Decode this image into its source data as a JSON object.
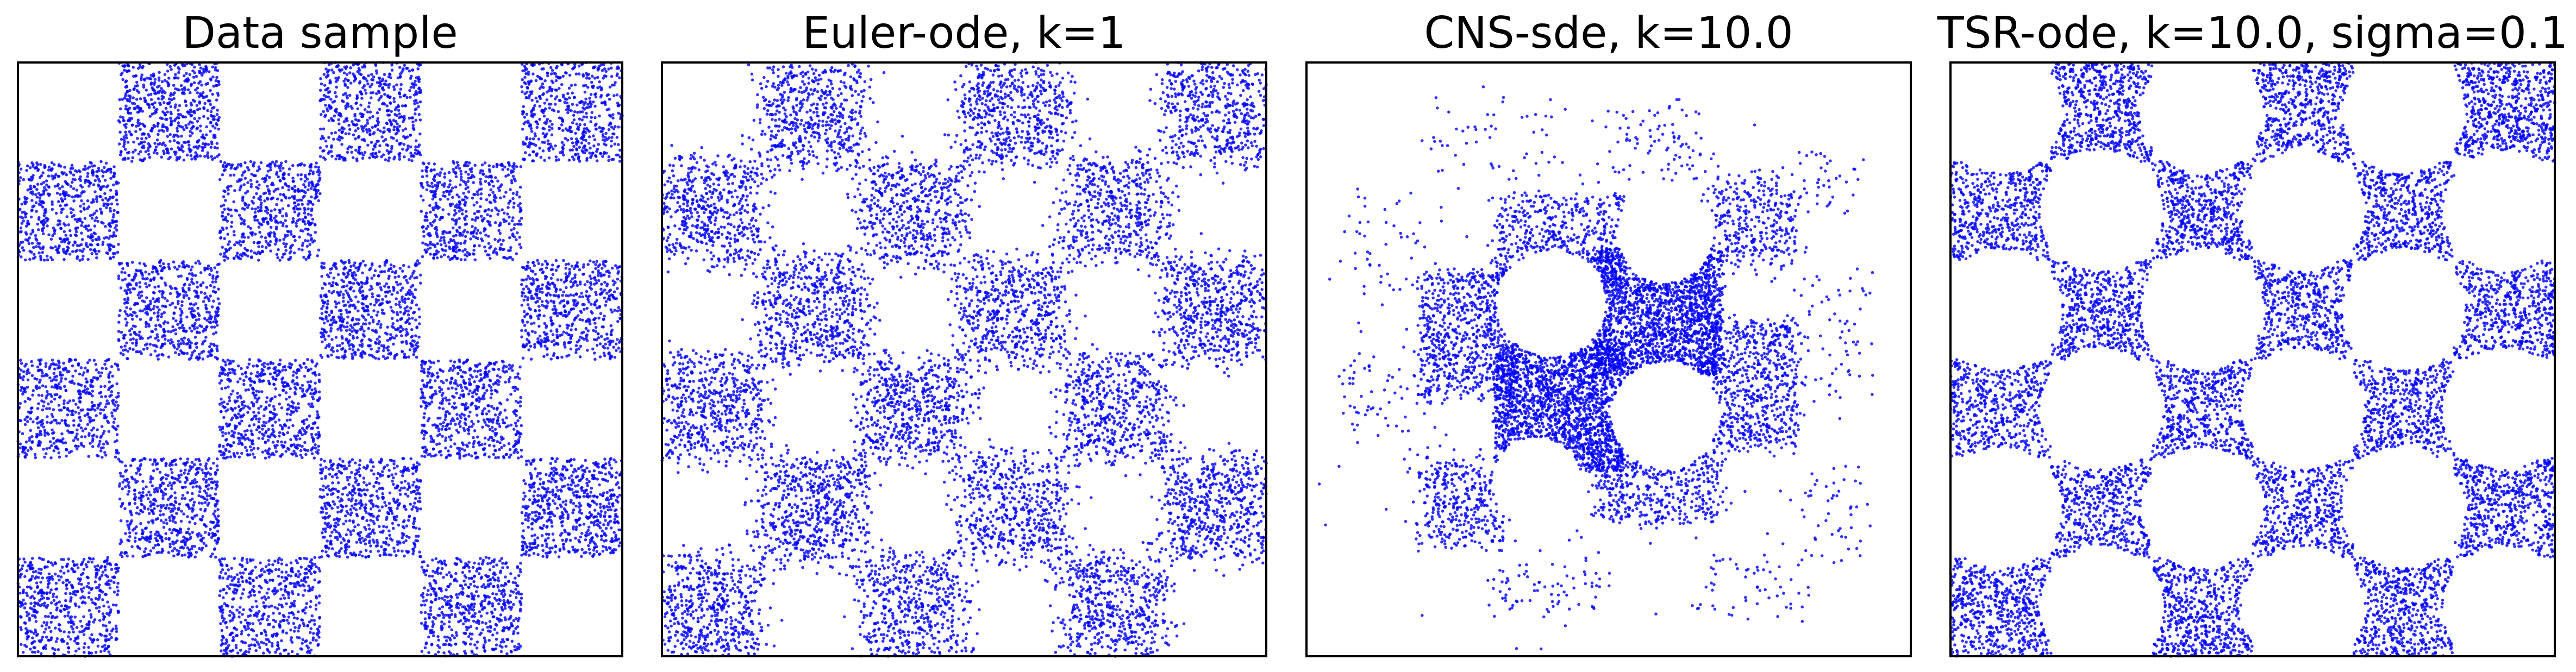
{
  "chart_data": [
    {
      "type": "scatter",
      "title": "Data sample",
      "xlim": [
        -4,
        4
      ],
      "ylim": [
        -4,
        4
      ],
      "grid": false,
      "marker_color": "#0000ff",
      "pattern": "checkerboard 6x6, uniform fill",
      "approx_point_count": 10000
    },
    {
      "type": "scatter",
      "title": "Euler-ode, k=1",
      "xlim": [
        -4,
        4
      ],
      "ylim": [
        -4,
        4
      ],
      "grid": false,
      "marker_color": "#0000ff",
      "pattern": "checkerboard 6x6, diffuse",
      "approx_point_count": 10000
    },
    {
      "type": "scatter",
      "title": "CNS-sde, k=10.0",
      "xlim": [
        -4,
        4
      ],
      "ylim": [
        -4,
        4
      ],
      "grid": false,
      "marker_color": "#0000ff",
      "pattern": "concentrated center squares with circular voids",
      "approx_point_count": 10000
    },
    {
      "type": "scatter",
      "title": "TSR-ode, k=10.0, sigma=0.1",
      "xlim": [
        -4,
        4
      ],
      "ylim": [
        -4,
        4
      ],
      "grid": false,
      "marker_color": "#0000ff",
      "pattern": "checkerboard 6x6 with concave sides",
      "approx_point_count": 10000
    }
  ]
}
